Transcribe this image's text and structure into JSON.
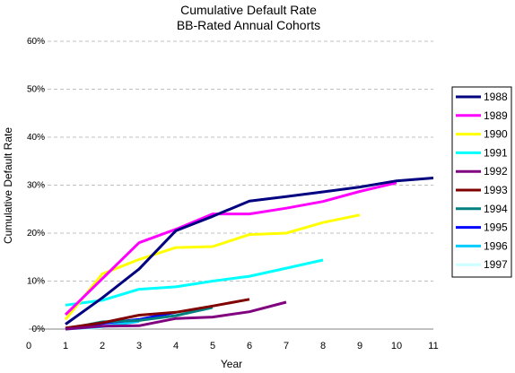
{
  "chart_data": {
    "type": "line",
    "title": "Cumulative Default Rate",
    "subtitle": "BB-Rated Annual Cohorts",
    "xlabel": "Year",
    "ylabel": "Cumulative Default Rate",
    "xlim": [
      0,
      11
    ],
    "ylim": [
      0,
      60
    ],
    "x_ticks": [
      "0",
      "1",
      "2",
      "3",
      "4",
      "5",
      "6",
      "7",
      "8",
      "9",
      "10",
      "11"
    ],
    "y_ticks": [
      "0%",
      "10%",
      "20%",
      "30%",
      "40%",
      "50%",
      "60%"
    ],
    "grid": "horizontal dashed",
    "legend_position": "right",
    "series": [
      {
        "name": "1988",
        "color": "#000080",
        "x": [
          1,
          2,
          3,
          4,
          5,
          6,
          7,
          8,
          9,
          10,
          11
        ],
        "values": [
          1.0,
          6.5,
          12.5,
          20.5,
          23.5,
          26.7,
          27.6,
          28.6,
          29.6,
          30.9,
          31.5
        ]
      },
      {
        "name": "1989",
        "color": "#ff00ff",
        "x": [
          1,
          2,
          3,
          4,
          5,
          6,
          7,
          8,
          9,
          10
        ],
        "values": [
          3.0,
          10.5,
          18.0,
          20.8,
          24.0,
          24.0,
          25.2,
          26.6,
          28.7,
          30.5
        ]
      },
      {
        "name": "1990",
        "color": "#ffff00",
        "x": [
          1,
          2,
          3,
          4,
          5,
          6,
          7,
          8,
          9
        ],
        "values": [
          2.0,
          11.5,
          14.5,
          17.0,
          17.2,
          19.7,
          20.0,
          22.2,
          23.8
        ]
      },
      {
        "name": "1991",
        "color": "#00ffff",
        "x": [
          1,
          2,
          3,
          4,
          5,
          6,
          7,
          8
        ],
        "values": [
          5.0,
          6.0,
          8.3,
          8.8,
          10.0,
          11.0,
          12.7,
          14.4
        ]
      },
      {
        "name": "1992",
        "color": "#800080",
        "x": [
          1,
          2,
          3,
          4,
          5,
          6,
          7
        ],
        "values": [
          0.0,
          0.6,
          0.7,
          2.2,
          2.5,
          3.6,
          5.6
        ]
      },
      {
        "name": "1993",
        "color": "#800000",
        "x": [
          1,
          2,
          3,
          4,
          5,
          6
        ],
        "values": [
          0.2,
          1.3,
          2.9,
          3.5,
          4.8,
          6.2
        ]
      },
      {
        "name": "1994",
        "color": "#008080",
        "x": [
          1,
          2,
          3,
          4,
          5
        ],
        "values": [
          0.0,
          1.5,
          1.8,
          2.8,
          4.5
        ]
      },
      {
        "name": "1995",
        "color": "#0000ff",
        "x": [
          1,
          2,
          3,
          4
        ],
        "values": [
          0.0,
          1.2,
          2.0,
          3.5
        ]
      },
      {
        "name": "1996",
        "color": "#00ccff",
        "x": [
          1,
          2,
          3
        ],
        "values": [
          0.0,
          0.5,
          1.6
        ]
      },
      {
        "name": "1997",
        "color": "#ccffff",
        "x": [
          1,
          2
        ],
        "values": [
          0.0,
          0.3
        ]
      }
    ]
  }
}
